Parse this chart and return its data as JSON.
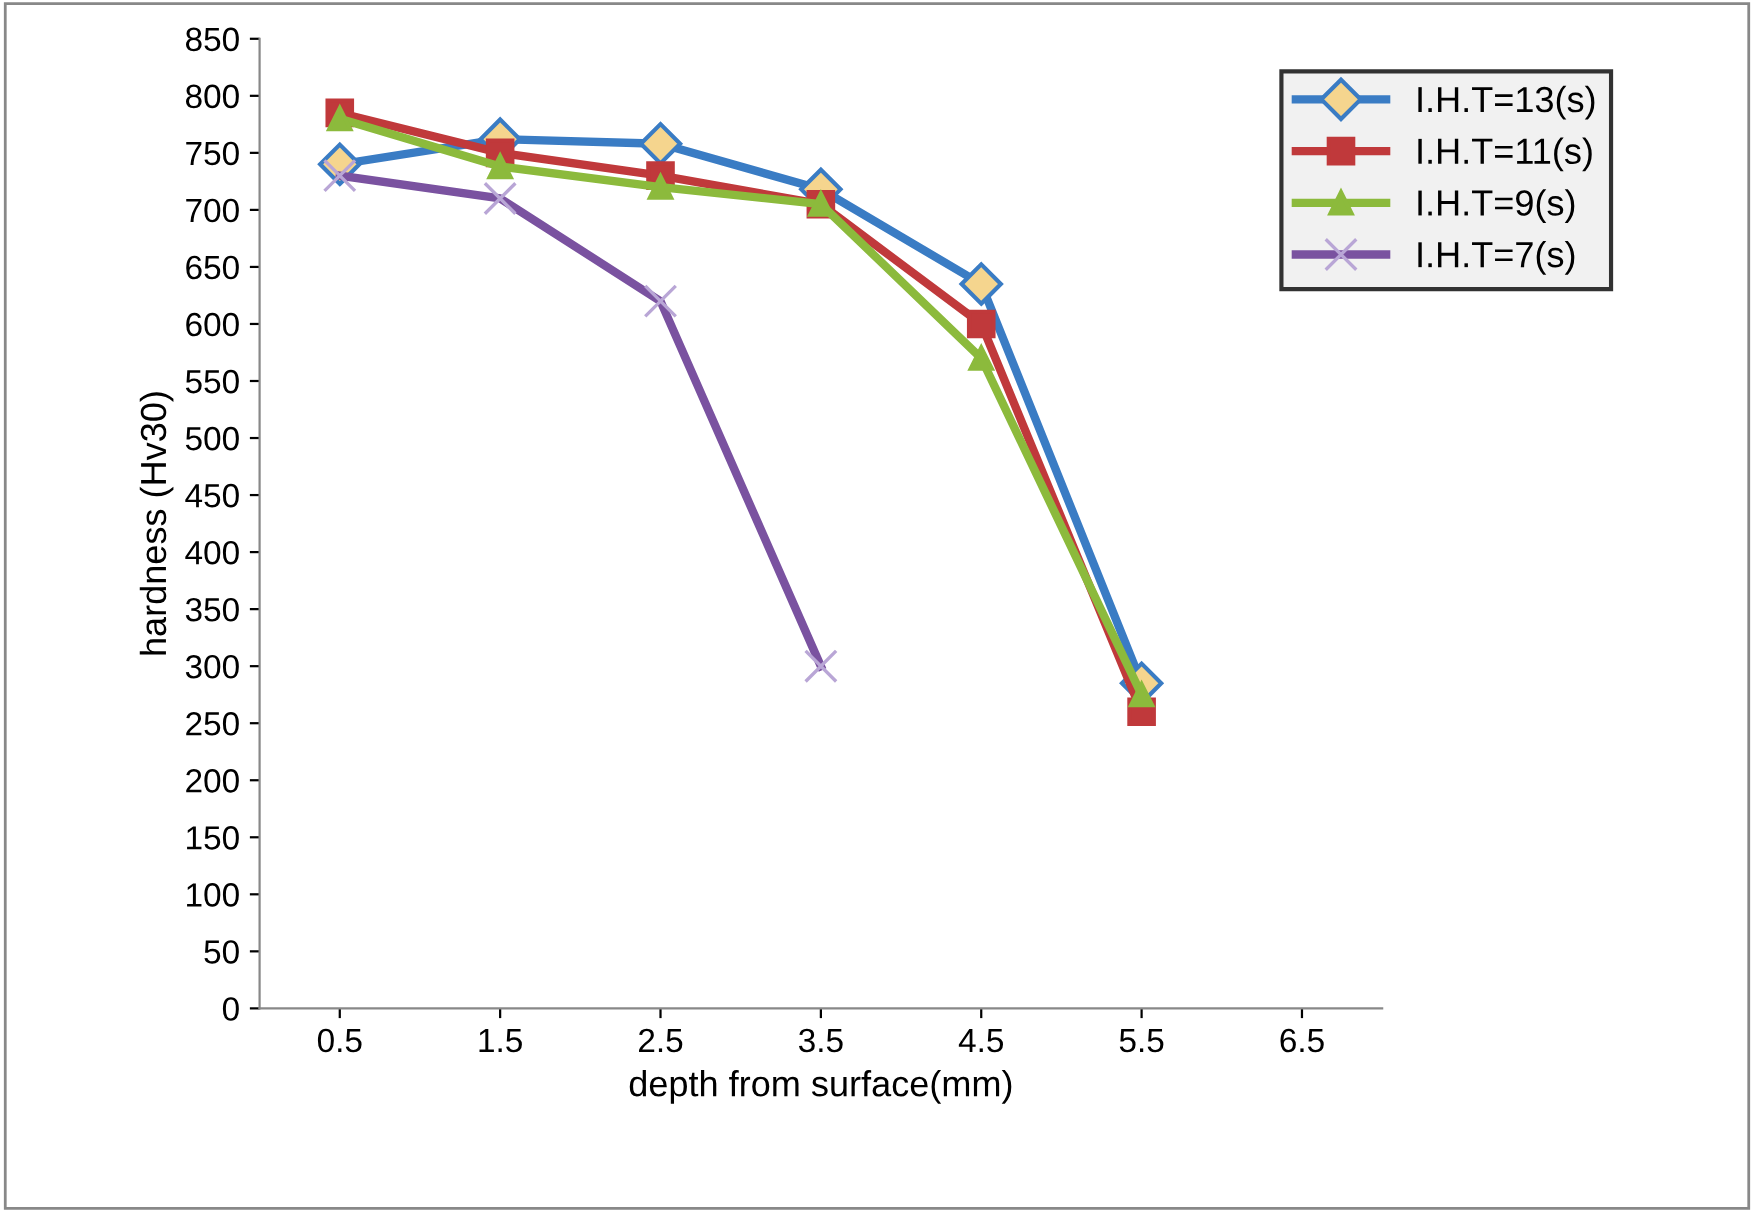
{
  "chart_data": {
    "type": "line",
    "xlabel": "depth from surface(mm)",
    "ylabel": "hardness (Hv30)",
    "categories": [
      "0.5",
      "1.5",
      "2.5",
      "3.5",
      "4.5",
      "5.5",
      "6.5"
    ],
    "series": [
      {
        "name": "I.H.T=13(s)",
        "color": "#3a7cc4",
        "marker": "diamond",
        "values": [
          740,
          762,
          758,
          718,
          635,
          285,
          null
        ]
      },
      {
        "name": "I.H.T=11(s)",
        "color": "#c0393b",
        "marker": "square",
        "values": [
          785,
          750,
          730,
          705,
          600,
          260,
          null
        ]
      },
      {
        "name": "I.H.T=9(s)",
        "color": "#8cba3c",
        "marker": "triangle",
        "values": [
          780,
          738,
          720,
          705,
          570,
          275,
          null
        ]
      },
      {
        "name": "I.H.T=7(s)",
        "color": "#7a52a0",
        "marker": "cross",
        "values": [
          730,
          710,
          620,
          300,
          null,
          null,
          null
        ]
      }
    ],
    "ylim": [
      0,
      850
    ],
    "yticks": [
      0,
      50,
      100,
      150,
      200,
      250,
      300,
      350,
      400,
      450,
      500,
      550,
      600,
      650,
      700,
      750,
      800,
      850
    ],
    "grid": false,
    "legend": "top right"
  }
}
